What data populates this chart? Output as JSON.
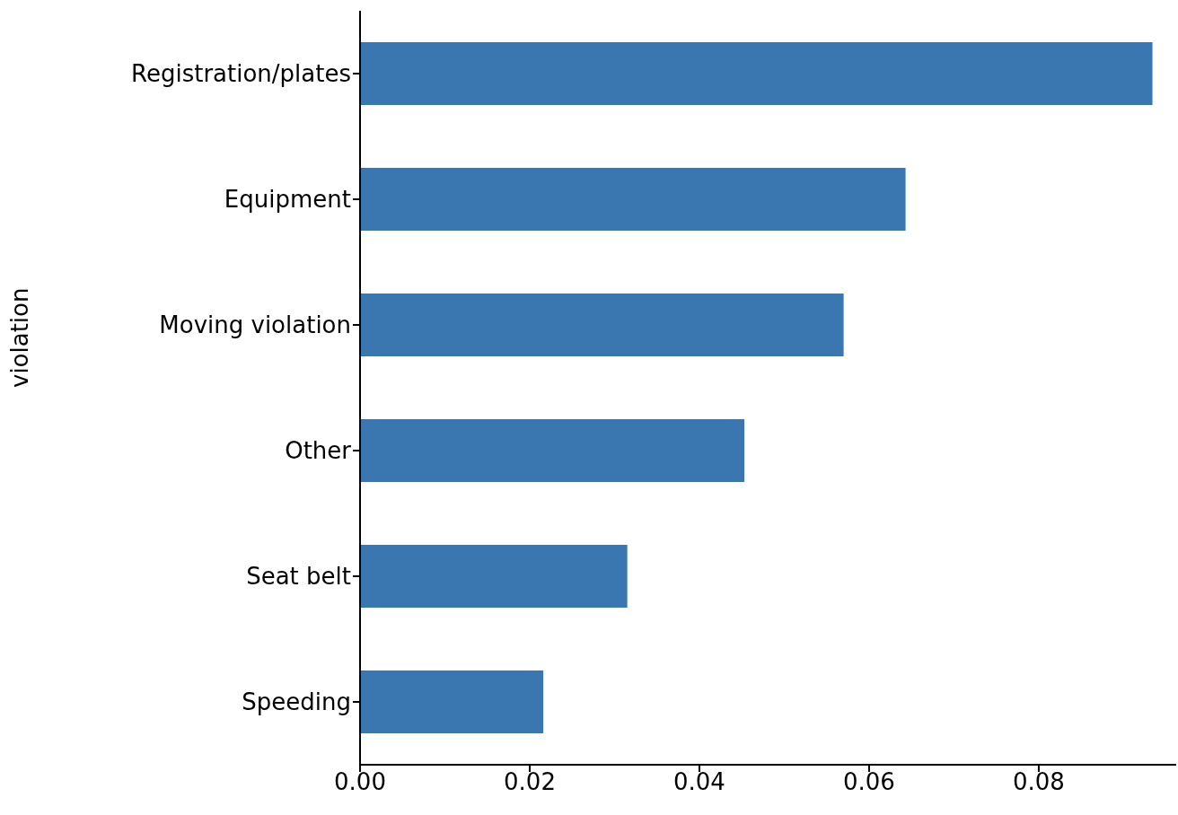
{
  "chart_data": {
    "type": "bar",
    "orientation": "horizontal",
    "ylabel": "violation",
    "categories": [
      "Registration/plates",
      "Equipment",
      "Moving violation",
      "Other",
      "Seat belt",
      "Speeding"
    ],
    "values": [
      0.0934,
      0.0643,
      0.057,
      0.0453,
      0.0315,
      0.0216
    ],
    "color": "#3a76af",
    "xlim": [
      0,
      0.0962
    ],
    "xticks": [
      {
        "value": 0,
        "label": "0.00"
      },
      {
        "value": 0.02,
        "label": "0.02"
      },
      {
        "value": 0.04,
        "label": "0.04"
      },
      {
        "value": 0.06,
        "label": "0.06"
      },
      {
        "value": 0.08,
        "label": "0.08"
      }
    ],
    "grid": false,
    "legend": false
  }
}
